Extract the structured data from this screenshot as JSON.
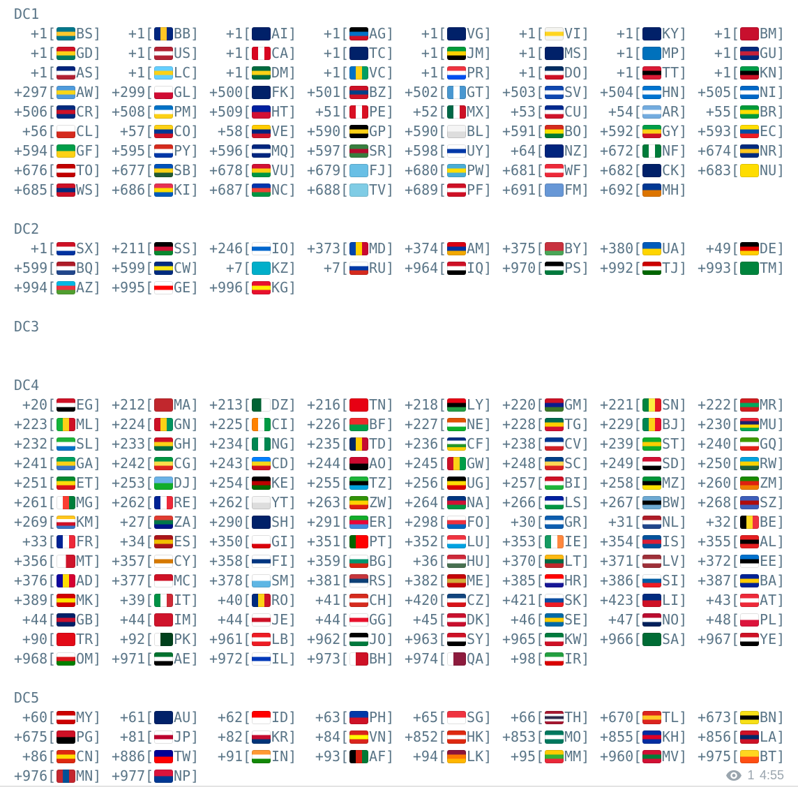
{
  "page": {
    "background": "#ffffff",
    "text_color": "#5a7587",
    "meta_color": "#9aa5ae"
  },
  "sections": [
    {
      "name": "DC1",
      "blank_rows_after": 1,
      "entries": [
        [
          "+1",
          "BS"
        ],
        [
          "+1",
          "BB"
        ],
        [
          "+1",
          "AI"
        ],
        [
          "+1",
          "AG"
        ],
        [
          "+1",
          "VG"
        ],
        [
          "+1",
          "VI"
        ],
        [
          "+1",
          "KY"
        ],
        [
          "+1",
          "BM"
        ],
        [
          "+1",
          "GD"
        ],
        [
          "+1",
          "US"
        ],
        [
          "+1",
          "CA"
        ],
        [
          "+1",
          "TC"
        ],
        [
          "+1",
          "JM"
        ],
        [
          "+1",
          "MS"
        ],
        [
          "+1",
          "MP"
        ],
        [
          "+1",
          "GU"
        ],
        [
          "+1",
          "AS"
        ],
        [
          "+1",
          "LC"
        ],
        [
          "+1",
          "DM"
        ],
        [
          "+1",
          "VC"
        ],
        [
          "+1",
          "PR"
        ],
        [
          "+1",
          "DO"
        ],
        [
          "+1",
          "TT"
        ],
        [
          "+1",
          "KN"
        ],
        [
          "+297",
          "AW"
        ],
        [
          "+299",
          "GL"
        ],
        [
          "+500",
          "FK"
        ],
        [
          "+501",
          "BZ"
        ],
        [
          "+502",
          "GT"
        ],
        [
          "+503",
          "SV"
        ],
        [
          "+504",
          "HN"
        ],
        [
          "+505",
          "NI"
        ],
        [
          "+506",
          "CR"
        ],
        [
          "+508",
          "PM"
        ],
        [
          "+509",
          "HT"
        ],
        [
          "+51",
          "PE"
        ],
        [
          "+52",
          "MX"
        ],
        [
          "+53",
          "CU"
        ],
        [
          "+54",
          "AR"
        ],
        [
          "+55",
          "BR"
        ],
        [
          "+56",
          "CL"
        ],
        [
          "+57",
          "CO"
        ],
        [
          "+58",
          "VE"
        ],
        [
          "+590",
          "GP"
        ],
        [
          "+590",
          "BL"
        ],
        [
          "+591",
          "BO"
        ],
        [
          "+592",
          "GY"
        ],
        [
          "+593",
          "EC"
        ],
        [
          "+594",
          "GF"
        ],
        [
          "+595",
          "PY"
        ],
        [
          "+596",
          "MQ"
        ],
        [
          "+597",
          "SR"
        ],
        [
          "+598",
          "UY"
        ],
        [
          "+64",
          "NZ"
        ],
        [
          "+672",
          "NF"
        ],
        [
          "+674",
          "NR"
        ],
        [
          "+676",
          "TO"
        ],
        [
          "+677",
          "SB"
        ],
        [
          "+678",
          "VU"
        ],
        [
          "+679",
          "FJ"
        ],
        [
          "+680",
          "PW"
        ],
        [
          "+681",
          "WF"
        ],
        [
          "+682",
          "CK"
        ],
        [
          "+683",
          "NU"
        ],
        [
          "+685",
          "WS"
        ],
        [
          "+686",
          "KI"
        ],
        [
          "+687",
          "NC"
        ],
        [
          "+688",
          "TV"
        ],
        [
          "+689",
          "PF"
        ],
        [
          "+691",
          "FM"
        ],
        [
          "+692",
          "MH"
        ]
      ]
    },
    {
      "name": "DC2",
      "blank_rows_after": 1,
      "entries": [
        [
          "+1",
          "SX"
        ],
        [
          "+211",
          "SS"
        ],
        [
          "+246",
          "IO"
        ],
        [
          "+373",
          "MD"
        ],
        [
          "+374",
          "AM"
        ],
        [
          "+375",
          "BY"
        ],
        [
          "+380",
          "UA"
        ],
        [
          "+49",
          "DE"
        ],
        [
          "+599",
          "BQ"
        ],
        [
          "+599",
          "CW"
        ],
        [
          "+7",
          "KZ"
        ],
        [
          "+7",
          "RU"
        ],
        [
          "+964",
          "IQ"
        ],
        [
          "+970",
          "PS"
        ],
        [
          "+992",
          "TJ"
        ],
        [
          "+993",
          "TM"
        ],
        [
          "+994",
          "AZ"
        ],
        [
          "+995",
          "GE"
        ],
        [
          "+996",
          "KG"
        ]
      ]
    },
    {
      "name": "DC3",
      "blank_rows_after": 2,
      "entries": []
    },
    {
      "name": "DC4",
      "blank_rows_after": 1,
      "entries": [
        [
          "+20",
          "EG"
        ],
        [
          "+212",
          "MA"
        ],
        [
          "+213",
          "DZ"
        ],
        [
          "+216",
          "TN"
        ],
        [
          "+218",
          "LY"
        ],
        [
          "+220",
          "GM"
        ],
        [
          "+221",
          "SN"
        ],
        [
          "+222",
          "MR"
        ],
        [
          "+223",
          "ML"
        ],
        [
          "+224",
          "GN"
        ],
        [
          "+225",
          "CI"
        ],
        [
          "+226",
          "BF"
        ],
        [
          "+227",
          "NE"
        ],
        [
          "+228",
          "TG"
        ],
        [
          "+229",
          "BJ"
        ],
        [
          "+230",
          "MU"
        ],
        [
          "+232",
          "SL"
        ],
        [
          "+233",
          "GH"
        ],
        [
          "+234",
          "NG"
        ],
        [
          "+235",
          "TD"
        ],
        [
          "+236",
          "CF"
        ],
        [
          "+238",
          "CV"
        ],
        [
          "+239",
          "ST"
        ],
        [
          "+240",
          "GQ"
        ],
        [
          "+241",
          "GA"
        ],
        [
          "+242",
          "CG"
        ],
        [
          "+243",
          "CD"
        ],
        [
          "+244",
          "AO"
        ],
        [
          "+245",
          "GW"
        ],
        [
          "+248",
          "SC"
        ],
        [
          "+249",
          "SD"
        ],
        [
          "+250",
          "RW"
        ],
        [
          "+251",
          "ET"
        ],
        [
          "+253",
          "DJ"
        ],
        [
          "+254",
          "KE"
        ],
        [
          "+255",
          "TZ"
        ],
        [
          "+256",
          "UG"
        ],
        [
          "+257",
          "BI"
        ],
        [
          "+258",
          "MZ"
        ],
        [
          "+260",
          "ZM"
        ],
        [
          "+261",
          "MG"
        ],
        [
          "+262",
          "RE"
        ],
        [
          "+262",
          "YT"
        ],
        [
          "+263",
          "ZW"
        ],
        [
          "+264",
          "NA"
        ],
        [
          "+266",
          "LS"
        ],
        [
          "+267",
          "BW"
        ],
        [
          "+268",
          "SZ"
        ],
        [
          "+269",
          "KM"
        ],
        [
          "+27",
          "ZA"
        ],
        [
          "+290",
          "SH"
        ],
        [
          "+291",
          "ER"
        ],
        [
          "+298",
          "FO"
        ],
        [
          "+30",
          "GR"
        ],
        [
          "+31",
          "NL"
        ],
        [
          "+32",
          "BE"
        ],
        [
          "+33",
          "FR"
        ],
        [
          "+34",
          "ES"
        ],
        [
          "+350",
          "GI"
        ],
        [
          "+351",
          "PT"
        ],
        [
          "+352",
          "LU"
        ],
        [
          "+353",
          "IE"
        ],
        [
          "+354",
          "IS"
        ],
        [
          "+355",
          "AL"
        ],
        [
          "+356",
          "MT"
        ],
        [
          "+357",
          "CY"
        ],
        [
          "+358",
          "FI"
        ],
        [
          "+359",
          "BG"
        ],
        [
          "+36",
          "HU"
        ],
        [
          "+370",
          "LT"
        ],
        [
          "+371",
          "LV"
        ],
        [
          "+372",
          "EE"
        ],
        [
          "+376",
          "AD"
        ],
        [
          "+377",
          "MC"
        ],
        [
          "+378",
          "SM"
        ],
        [
          "+381",
          "RS"
        ],
        [
          "+382",
          "ME"
        ],
        [
          "+385",
          "HR"
        ],
        [
          "+386",
          "SI"
        ],
        [
          "+387",
          "BA"
        ],
        [
          "+389",
          "MK"
        ],
        [
          "+39",
          "IT"
        ],
        [
          "+40",
          "RO"
        ],
        [
          "+41",
          "CH"
        ],
        [
          "+420",
          "CZ"
        ],
        [
          "+421",
          "SK"
        ],
        [
          "+423",
          "LI"
        ],
        [
          "+43",
          "AT"
        ],
        [
          "+44",
          "GB"
        ],
        [
          "+44",
          "IM"
        ],
        [
          "+44",
          "JE"
        ],
        [
          "+44",
          "GG"
        ],
        [
          "+45",
          "DK"
        ],
        [
          "+46",
          "SE"
        ],
        [
          "+47",
          "NO"
        ],
        [
          "+48",
          "PL"
        ],
        [
          "+90",
          "TR"
        ],
        [
          "+92",
          "PK"
        ],
        [
          "+961",
          "LB"
        ],
        [
          "+962",
          "JO"
        ],
        [
          "+963",
          "SY"
        ],
        [
          "+965",
          "KW"
        ],
        [
          "+966",
          "SA"
        ],
        [
          "+967",
          "YE"
        ],
        [
          "+968",
          "OM"
        ],
        [
          "+971",
          "AE"
        ],
        [
          "+972",
          "IL"
        ],
        [
          "+973",
          "BH"
        ],
        [
          "+974",
          "QA"
        ],
        [
          "+98",
          "IR"
        ]
      ]
    },
    {
      "name": "DC5",
      "blank_rows_after": 0,
      "entries": [
        [
          "+60",
          "MY"
        ],
        [
          "+61",
          "AU"
        ],
        [
          "+62",
          "ID"
        ],
        [
          "+63",
          "PH"
        ],
        [
          "+65",
          "SG"
        ],
        [
          "+66",
          "TH"
        ],
        [
          "+670",
          "TL"
        ],
        [
          "+673",
          "BN"
        ],
        [
          "+675",
          "PG"
        ],
        [
          "+81",
          "JP"
        ],
        [
          "+82",
          "KR"
        ],
        [
          "+84",
          "VN"
        ],
        [
          "+852",
          "HK"
        ],
        [
          "+853",
          "MO"
        ],
        [
          "+855",
          "KH"
        ],
        [
          "+856",
          "LA"
        ],
        [
          "+86",
          "CN"
        ],
        [
          "+886",
          "TW"
        ],
        [
          "+91",
          "IN"
        ],
        [
          "+93",
          "AF"
        ],
        [
          "+94",
          "LK"
        ],
        [
          "+95",
          "MM"
        ],
        [
          "+960",
          "MV"
        ],
        [
          "+975",
          "BT"
        ],
        [
          "+976",
          "MN"
        ],
        [
          "+977",
          "NP"
        ]
      ]
    }
  ],
  "footer": {
    "views_icon": "eye-icon",
    "views": "1",
    "time": "4:55"
  }
}
